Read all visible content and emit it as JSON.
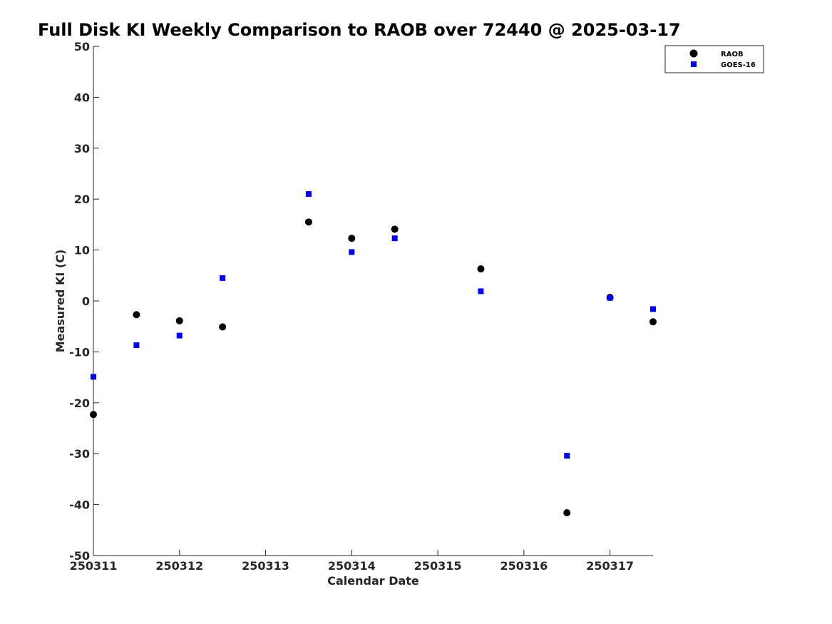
{
  "chart_data": {
    "type": "scatter",
    "title": "Full Disk KI Weekly Comparison to RAOB over 72440 @ 2025-03-17",
    "xlabel": "Calendar Date",
    "ylabel": "Measured KI (C)",
    "xlim": [
      "250311",
      "250317.5"
    ],
    "ylim": [
      -50,
      50
    ],
    "x_ticks": [
      "250311",
      "250312",
      "250313",
      "250314",
      "250315",
      "250316",
      "250317"
    ],
    "y_ticks": [
      50,
      40,
      30,
      20,
      10,
      0,
      -10,
      -20,
      -30,
      -40,
      -50
    ],
    "y_tick_labels": [
      "50",
      "40",
      "30",
      "20",
      "10",
      "0",
      "-10",
      "-20",
      "-30",
      "-40",
      "-50"
    ],
    "grid": false,
    "legend": "top-right",
    "series": [
      {
        "name": "RAOB",
        "marker": "circle",
        "color": "#000000",
        "points": [
          {
            "x": "250311 00Z",
            "y": -22.3
          },
          {
            "x": "250311 12Z",
            "y": -2.7
          },
          {
            "x": "250312 00Z",
            "y": -3.9
          },
          {
            "x": "250312 12Z",
            "y": -5.1
          },
          {
            "x": "250313 12Z",
            "y": 15.5
          },
          {
            "x": "250314 00Z",
            "y": 12.3
          },
          {
            "x": "250314 12Z",
            "y": 14.1
          },
          {
            "x": "250315 12Z",
            "y": 6.3
          },
          {
            "x": "250316 12Z",
            "y": -41.6
          },
          {
            "x": "250317 00Z",
            "y": 0.7
          },
          {
            "x": "250317 12Z",
            "y": -4.1
          }
        ]
      },
      {
        "name": "GOES-16",
        "marker": "square",
        "color": "#0000ff",
        "points": [
          {
            "x": "250311 00Z",
            "y": -14.9
          },
          {
            "x": "250311 12Z",
            "y": -8.7
          },
          {
            "x": "250312 00Z",
            "y": -6.8
          },
          {
            "x": "250312 12Z",
            "y": 4.5
          },
          {
            "x": "250313 12Z",
            "y": 21.0
          },
          {
            "x": "250314 00Z",
            "y": 9.6
          },
          {
            "x": "250314 12Z",
            "y": 12.3
          },
          {
            "x": "250315 12Z",
            "y": 1.9
          },
          {
            "x": "250316 12Z",
            "y": -30.4
          },
          {
            "x": "250317 00Z",
            "y": 0.6
          },
          {
            "x": "250317 12Z",
            "y": -1.6
          }
        ]
      }
    ]
  }
}
